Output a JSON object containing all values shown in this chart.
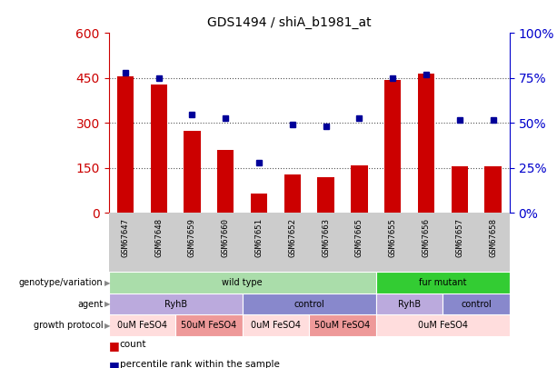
{
  "title": "GDS1494 / shiA_b1981_at",
  "samples": [
    "GSM67647",
    "GSM67648",
    "GSM67659",
    "GSM67660",
    "GSM67651",
    "GSM67652",
    "GSM67663",
    "GSM67665",
    "GSM67655",
    "GSM67656",
    "GSM67657",
    "GSM67658"
  ],
  "counts": [
    455,
    430,
    275,
    210,
    65,
    130,
    120,
    160,
    445,
    465,
    155,
    155
  ],
  "percentiles": [
    78,
    75,
    55,
    53,
    28,
    49,
    48,
    53,
    75,
    77,
    52,
    52
  ],
  "left_ylim": [
    0,
    600
  ],
  "left_yticks": [
    0,
    150,
    300,
    450,
    600
  ],
  "right_yticks": [
    0,
    25,
    50,
    75,
    100
  ],
  "bar_color": "#cc0000",
  "dot_color": "#000099",
  "bar_width": 0.5,
  "genotype_groups": [
    {
      "label": "wild type",
      "start": 0,
      "end": 8,
      "color": "#aaddaa"
    },
    {
      "label": "fur mutant",
      "start": 8,
      "end": 12,
      "color": "#33cc33"
    }
  ],
  "agent_groups": [
    {
      "label": "RyhB",
      "start": 0,
      "end": 4,
      "color": "#bbaadd"
    },
    {
      "label": "control",
      "start": 4,
      "end": 8,
      "color": "#8888cc"
    },
    {
      "label": "RyhB",
      "start": 8,
      "end": 10,
      "color": "#bbaadd"
    },
    {
      "label": "control",
      "start": 10,
      "end": 12,
      "color": "#8888cc"
    }
  ],
  "growth_groups": [
    {
      "label": "0uM FeSO4",
      "start": 0,
      "end": 2,
      "color": "#ffdddd"
    },
    {
      "label": "50uM FeSO4",
      "start": 2,
      "end": 4,
      "color": "#ee9999"
    },
    {
      "label": "0uM FeSO4",
      "start": 4,
      "end": 6,
      "color": "#ffdddd"
    },
    {
      "label": "50uM FeSO4",
      "start": 6,
      "end": 8,
      "color": "#ee9999"
    },
    {
      "label": "0uM FeSO4",
      "start": 8,
      "end": 12,
      "color": "#ffdddd"
    }
  ],
  "row_labels": [
    "genotype/variation",
    "agent",
    "growth protocol"
  ],
  "bg_color": "#ffffff",
  "grid_color": "#555555",
  "left_axis_color": "#cc0000",
  "right_axis_color": "#0000cc",
  "tick_label_area_bg": "#cccccc",
  "legend_items": [
    {
      "color": "#cc0000",
      "label": "count"
    },
    {
      "color": "#000099",
      "label": "percentile rank within the sample"
    }
  ]
}
